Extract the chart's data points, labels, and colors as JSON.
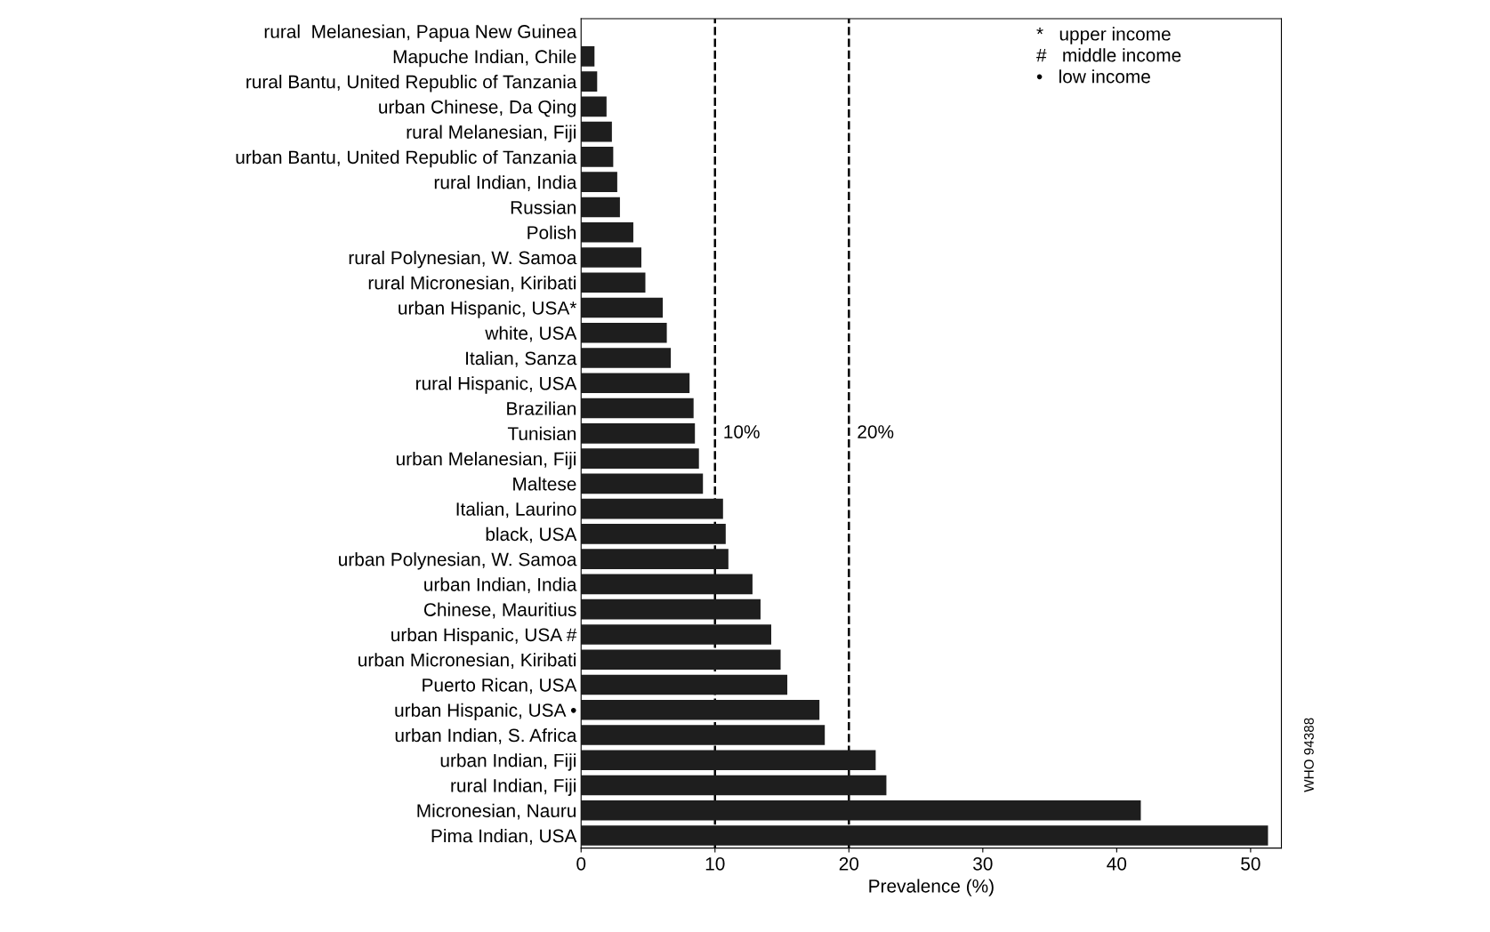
{
  "chart_data": {
    "type": "bar",
    "orientation": "horizontal",
    "xlabel": "Prevalence (%)",
    "categories": [
      "rural  Melanesian, Papua New Guinea",
      "Mapuche Indian, Chile",
      "rural Bantu, United Republic of Tanzania",
      "urban Chinese, Da Qing",
      "rural Melanesian, Fiji",
      "urban Bantu, United Republic of Tanzania",
      "rural Indian, India",
      "Russian",
      "Polish",
      "rural Polynesian, W. Samoa",
      "rural Micronesian, Kiribati",
      "urban Hispanic, USA*",
      "white, USA",
      "Italian, Sanza",
      "rural Hispanic, USA",
      "Brazilian",
      "Tunisian",
      "urban Melanesian, Fiji",
      "Maltese",
      "Italian, Laurino",
      "black, USA",
      "urban Polynesian, W. Samoa",
      "urban Indian, India",
      "Chinese, Mauritius",
      "urban Hispanic, USA #",
      "urban Micronesian, Kiribati",
      "Puerto Rican, USA",
      "urban Hispanic, USA •",
      "urban Indian, S. Africa",
      "urban Indian, Fiji",
      "rural Indian, Fiji",
      "Micronesian, Nauru",
      "Pima Indian, USA"
    ],
    "values": [
      0,
      1.0,
      1.2,
      1.9,
      2.3,
      2.4,
      2.7,
      2.9,
      3.9,
      4.5,
      4.8,
      6.1,
      6.4,
      6.7,
      8.1,
      8.4,
      8.5,
      8.8,
      9.1,
      10.6,
      10.8,
      11.0,
      12.8,
      13.4,
      14.2,
      14.9,
      15.4,
      17.8,
      18.2,
      22.0,
      22.8,
      41.8,
      51.3
    ],
    "color": "#1e1e1e",
    "xlim": [
      0,
      52.3
    ],
    "xticks": [
      0,
      10,
      20,
      30,
      40,
      50
    ],
    "ref_lines": [
      {
        "axis": "x",
        "value": 10,
        "label": "10%",
        "line_style": "dashed"
      },
      {
        "axis": "x",
        "value": 20,
        "label": "20%",
        "line_style": "dashed"
      }
    ],
    "annotations": [
      "*   upper income\n#   middle income\n•   low income",
      "WHO 94388"
    ],
    "grid": false
  }
}
